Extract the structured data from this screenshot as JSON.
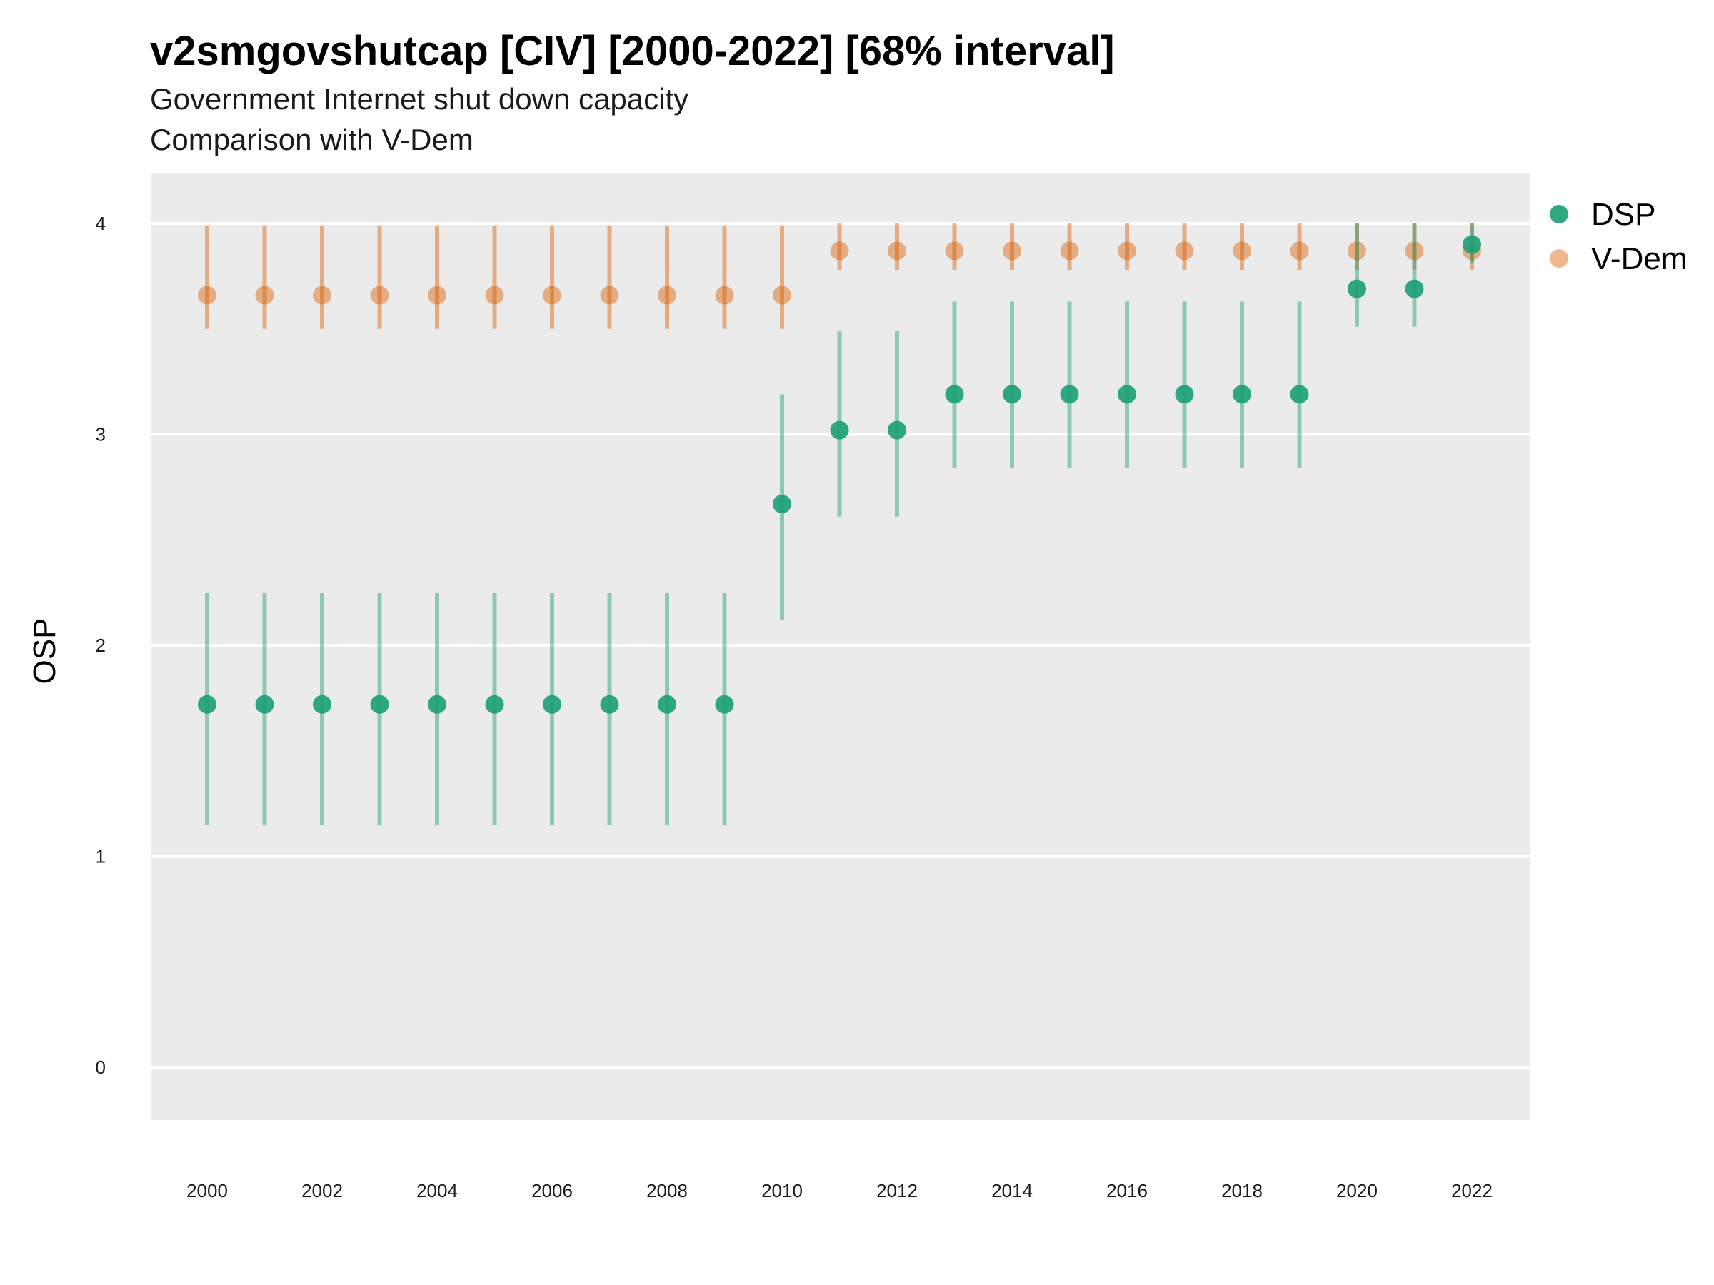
{
  "title": "v2smgovshutcap [CIV] [2000-2022] [68% interval]",
  "subtitle": [
    "Government Internet shut down capacity",
    "Comparison with V-Dem"
  ],
  "chart_data": {
    "type": "scatter",
    "title": "v2smgovshutcap [CIV] [2000-2022] [68% interval]",
    "xlabel": "",
    "ylabel": "OSP",
    "x": [
      2000,
      2001,
      2002,
      2003,
      2004,
      2005,
      2006,
      2007,
      2008,
      2009,
      2010,
      2011,
      2012,
      2013,
      2014,
      2015,
      2016,
      2017,
      2018,
      2019,
      2020,
      2021,
      2022
    ],
    "x_ticks": [
      2000,
      2002,
      2004,
      2006,
      2008,
      2010,
      2012,
      2014,
      2016,
      2018,
      2020,
      2022
    ],
    "y_ticks": [
      0,
      1,
      2,
      3,
      4
    ],
    "ylim": [
      -0.25,
      4.25
    ],
    "xlim": [
      1999,
      2023
    ],
    "grid": true,
    "legend_position": "right",
    "series": [
      {
        "name": "DSP",
        "color": "#1b9e77",
        "values": [
          1.72,
          1.72,
          1.72,
          1.72,
          1.72,
          1.72,
          1.72,
          1.72,
          1.72,
          1.72,
          2.67,
          3.02,
          3.02,
          3.19,
          3.19,
          3.19,
          3.19,
          3.19,
          3.19,
          3.19,
          3.69,
          3.69,
          3.9
        ],
        "lower": [
          1.15,
          1.15,
          1.15,
          1.15,
          1.15,
          1.15,
          1.15,
          1.15,
          1.15,
          1.15,
          2.12,
          2.61,
          2.61,
          2.84,
          2.84,
          2.84,
          2.84,
          2.84,
          2.84,
          2.84,
          3.51,
          3.51,
          3.81
        ],
        "upper": [
          2.25,
          2.25,
          2.25,
          2.25,
          2.25,
          2.25,
          2.25,
          2.25,
          2.25,
          2.25,
          3.19,
          3.49,
          3.49,
          3.63,
          3.63,
          3.63,
          3.63,
          3.63,
          3.63,
          3.63,
          4.0,
          4.0,
          4.0
        ]
      },
      {
        "name": "V-Dem",
        "color": "#d95f02",
        "values": [
          3.66,
          3.66,
          3.66,
          3.66,
          3.66,
          3.66,
          3.66,
          3.66,
          3.66,
          3.66,
          3.66,
          3.87,
          3.87,
          3.87,
          3.87,
          3.87,
          3.87,
          3.87,
          3.87,
          3.87,
          3.87,
          3.87,
          3.87
        ],
        "lower": [
          3.5,
          3.5,
          3.5,
          3.5,
          3.5,
          3.5,
          3.5,
          3.5,
          3.5,
          3.5,
          3.5,
          3.78,
          3.78,
          3.78,
          3.78,
          3.78,
          3.78,
          3.78,
          3.78,
          3.78,
          3.78,
          3.78,
          3.78
        ],
        "upper": [
          3.99,
          3.99,
          3.99,
          3.99,
          3.99,
          3.99,
          3.99,
          3.99,
          3.99,
          3.99,
          3.99,
          4.0,
          4.0,
          4.0,
          4.0,
          4.0,
          4.0,
          4.0,
          4.0,
          4.0,
          4.0,
          4.0,
          4.0
        ]
      }
    ]
  }
}
